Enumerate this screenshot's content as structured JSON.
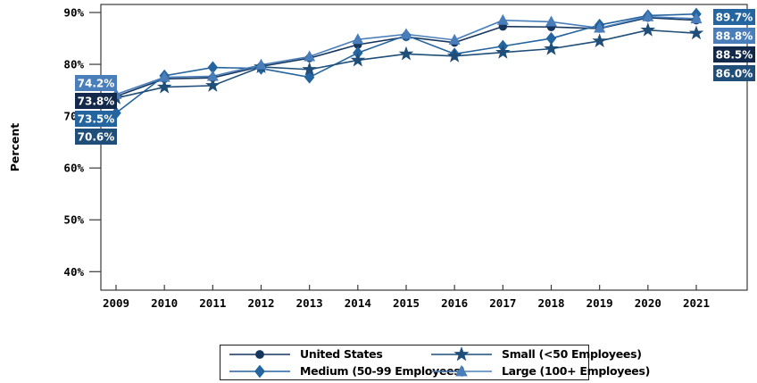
{
  "chart_data": {
    "type": "line",
    "title": "",
    "xlabel": "",
    "ylabel": "Percent",
    "ylim": [
      40,
      90
    ],
    "yticks": [
      90,
      80,
      70,
      60,
      50,
      40
    ],
    "ytick_suffix": "%",
    "grid": false,
    "legend_position": "bottom",
    "categories": [
      "2009",
      "2010",
      "2011",
      "2012",
      "2013",
      "2014",
      "2015",
      "2016",
      "2017",
      "2018",
      "2019",
      "2020",
      "2021"
    ],
    "series": [
      {
        "name": "United States",
        "marker": "circle",
        "color": "#17365D",
        "values": [
          73.8,
          77.2,
          77.4,
          79.6,
          81.2,
          83.8,
          85.3,
          84.2,
          87.3,
          87.2,
          86.9,
          89.0,
          88.5
        ]
      },
      {
        "name": "Medium (50-99 Employees)",
        "marker": "diamond",
        "color": "#24649F",
        "values": [
          70.6,
          77.8,
          79.4,
          79.2,
          77.5,
          82.2,
          85.6,
          82.0,
          83.5,
          85.0,
          87.6,
          89.4,
          89.7
        ]
      },
      {
        "name": "Small (<50 Employees)",
        "marker": "star",
        "color": "#1F4E79",
        "values": [
          73.5,
          75.6,
          75.9,
          79.5,
          79.0,
          80.8,
          82.0,
          81.6,
          82.3,
          83.0,
          84.5,
          86.6,
          86.0
        ]
      },
      {
        "name": "Large (100+ Employees)",
        "marker": "triangle",
        "color": "#4A7EBB",
        "values": [
          74.2,
          77.5,
          77.7,
          79.9,
          81.5,
          84.8,
          85.8,
          84.7,
          88.5,
          88.2,
          87.0,
          89.2,
          88.8
        ]
      }
    ],
    "point_labels": {
      "left": [
        {
          "text": "74.2%",
          "series": "Large (100+ Employees)",
          "bg": "#4A7EBB"
        },
        {
          "text": "73.8%",
          "series": "United States",
          "bg": "#12294B"
        },
        {
          "text": "73.5%",
          "series": "Small (<50 Employees)",
          "bg": "#24649F"
        },
        {
          "text": "70.6%",
          "series": "Medium (50-99 Employees)",
          "bg": "#1F4E79"
        }
      ],
      "right": [
        {
          "text": "89.7%",
          "series": "Medium (50-99 Employees)",
          "bg": "#24649F"
        },
        {
          "text": "88.8%",
          "series": "Large (100+ Employees)",
          "bg": "#4A7EBB"
        },
        {
          "text": "88.5%",
          "series": "United States",
          "bg": "#12294B"
        },
        {
          "text": "86.0%",
          "series": "Small (<50 Employees)",
          "bg": "#1F4E79"
        }
      ]
    }
  },
  "legend": {
    "order_note": "row1: United States | Small; row2: Medium | Large"
  }
}
